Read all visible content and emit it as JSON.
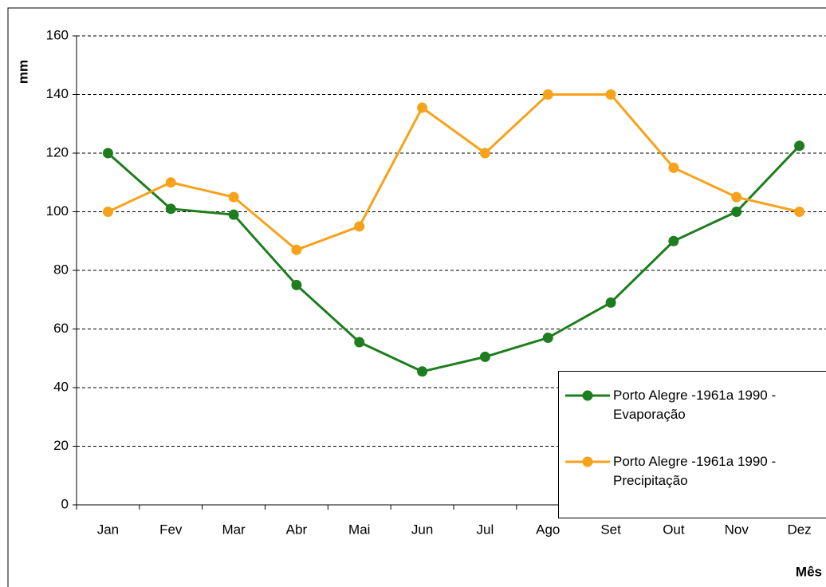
{
  "chart_data": {
    "type": "line",
    "y_label": "mm",
    "x_label": "Mês",
    "categories": [
      "Jan",
      "Fev",
      "Mar",
      "Abr",
      "Mai",
      "Jun",
      "Jul",
      "Ago",
      "Set",
      "Out",
      "Nov",
      "Dez"
    ],
    "series": [
      {
        "name": "Porto Alegre -1961a 1990 - Evaporação",
        "color": "#1e7d1e",
        "values": [
          120,
          101,
          99,
          75,
          55.5,
          45.5,
          50.5,
          57,
          69,
          90,
          100,
          122.5
        ]
      },
      {
        "name": "Porto Alegre -1961a 1990 - Precipitação",
        "color": "#f7a21b",
        "values": [
          100,
          110,
          105,
          87,
          95,
          135.5,
          120,
          140,
          140,
          115,
          105,
          100
        ]
      }
    ],
    "ylim": [
      0,
      160
    ],
    "yticks": [
      0,
      20,
      40,
      60,
      80,
      100,
      120,
      140,
      160
    ],
    "grid": true,
    "legend": "lower right"
  }
}
